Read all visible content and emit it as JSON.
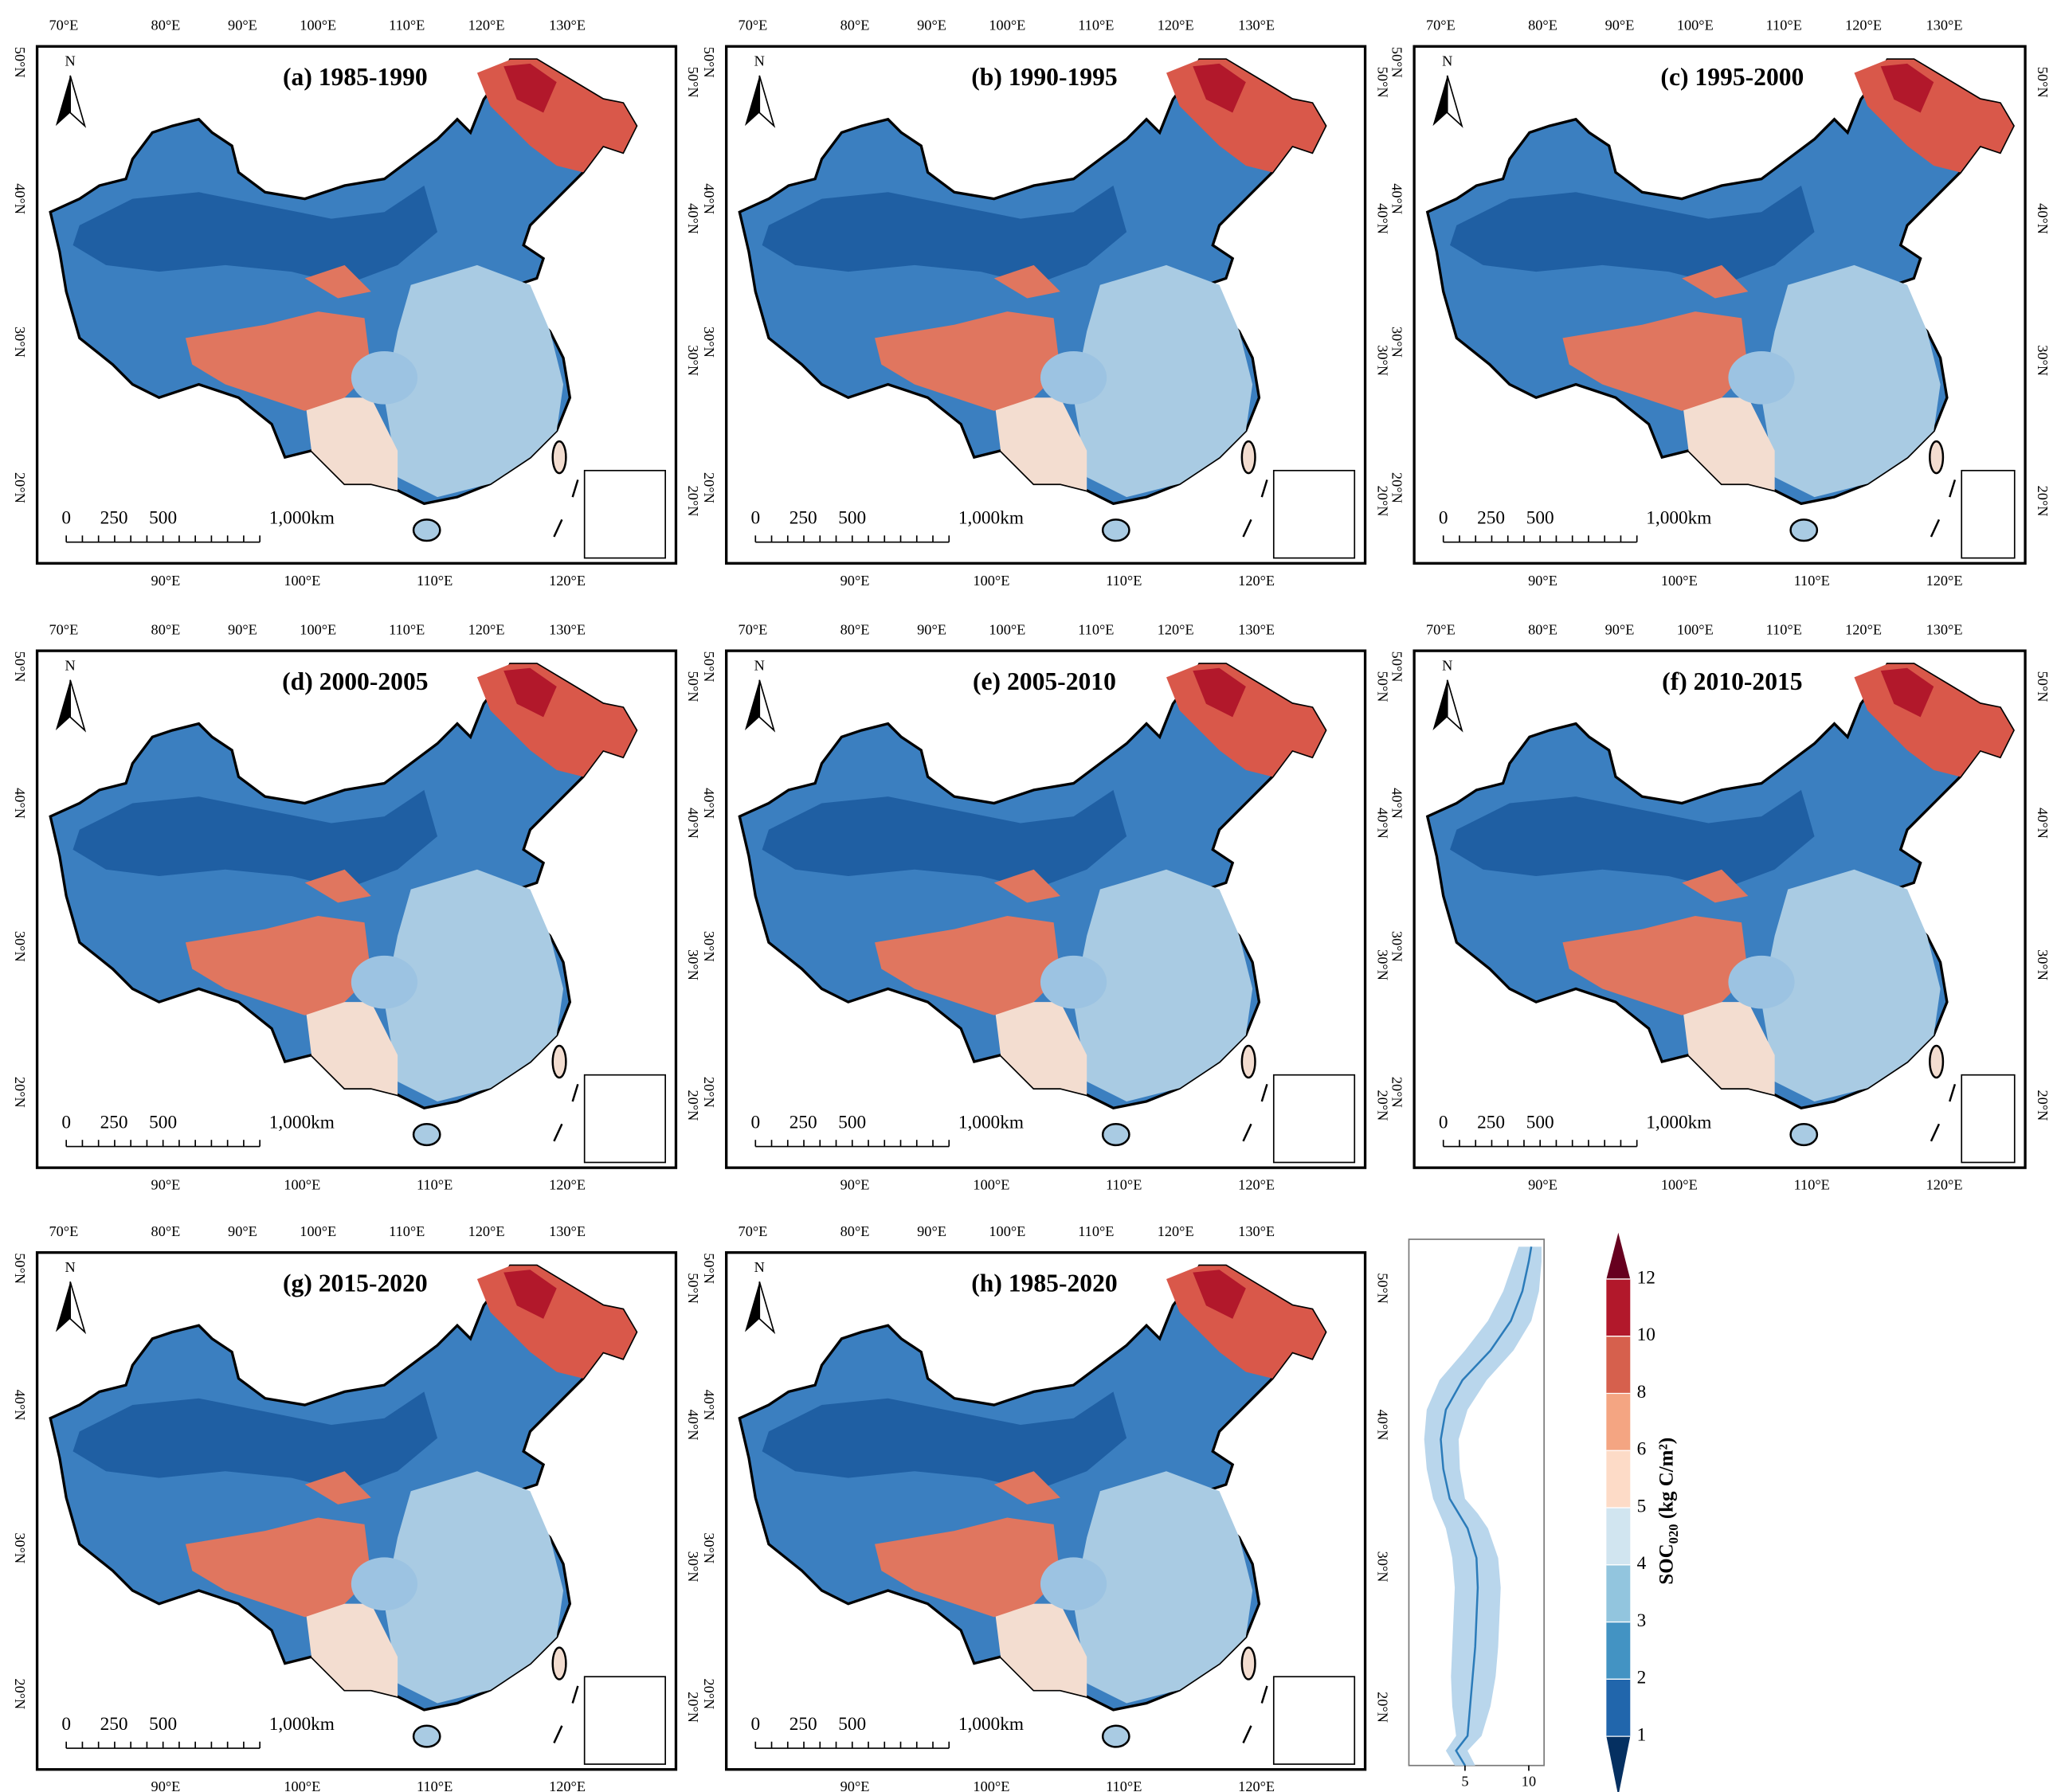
{
  "panels": [
    {
      "title": "(a) 1985-1990"
    },
    {
      "title": "(b) 1990-1995"
    },
    {
      "title": "(c) 1995-2000"
    },
    {
      "title": "(d) 2000-2005"
    },
    {
      "title": "(e) 2005-2010"
    },
    {
      "title": "(f) 2010-2015"
    },
    {
      "title": "(g) 2015-2020"
    },
    {
      "title": "(h) 1985-2020"
    }
  ],
  "map_labels": {
    "top_ticks": [
      "70°E",
      "80°E",
      "90°E",
      "100°E",
      "110°E",
      "120°E",
      "130°E"
    ],
    "bottom_ticks": [
      "90°E",
      "100°E",
      "110°E",
      "120°E"
    ],
    "left_ticks": [
      "50°N",
      "40°N",
      "30°N",
      "20°N"
    ],
    "right_ticks": [
      "50°N",
      "40°N",
      "30°N",
      "20°N"
    ],
    "north": "N",
    "scale_labels": [
      "0",
      "250",
      "500",
      "1,000km"
    ]
  },
  "chart_data": {
    "type": "line",
    "y": [
      18,
      19,
      20,
      22,
      24,
      26,
      28,
      30,
      32,
      34,
      35,
      36,
      38,
      40,
      42,
      44,
      46,
      48,
      50,
      52,
      53
    ],
    "values": [
      5,
      4.3,
      5.2,
      5.4,
      5.6,
      5.8,
      5.9,
      6.0,
      5.9,
      5.2,
      4.5,
      3.8,
      3.3,
      3.1,
      3.5,
      4.8,
      7.0,
      8.6,
      9.5,
      10.0,
      10.2
    ],
    "lower": [
      4.2,
      3.5,
      4.3,
      4.0,
      3.9,
      4.0,
      4.1,
      4.2,
      4.0,
      3.5,
      3.0,
      2.5,
      2.0,
      1.8,
      2.0,
      3.0,
      5.0,
      6.8,
      8.0,
      8.8,
      9.2
    ],
    "upper": [
      5.8,
      5.2,
      6.3,
      7.0,
      7.4,
      7.6,
      7.7,
      7.8,
      7.6,
      6.8,
      6.0,
      5.0,
      4.6,
      4.5,
      5.2,
      6.7,
      8.8,
      10.2,
      10.8,
      11.0,
      11.0
    ],
    "color": "#2b7bb9",
    "band_color": "#b9d6ec",
    "xlim": [
      0.6,
      11.2
    ],
    "xticks": [
      5,
      10
    ],
    "ylim": [
      18,
      53.5
    ]
  },
  "colorbar": {
    "boundaries": [
      1,
      2,
      3,
      4,
      5,
      6,
      8,
      10,
      12
    ],
    "colors": [
      "#2166ac",
      "#4393c3",
      "#92c5de",
      "#d1e5f0",
      "#fddbc7",
      "#f4a582",
      "#d6604d",
      "#b2182b"
    ],
    "under_color": "#053061",
    "over_color": "#67001f",
    "label": {
      "text": "SOC",
      "sub": "020",
      "unit": " (kg C/m²)"
    }
  }
}
